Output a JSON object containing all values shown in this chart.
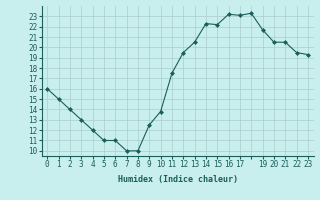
{
  "x": [
    0,
    1,
    2,
    3,
    4,
    5,
    6,
    7,
    8,
    9,
    10,
    11,
    12,
    13,
    14,
    15,
    16,
    17,
    18,
    19,
    20,
    21,
    22,
    23
  ],
  "y": [
    16,
    15,
    14,
    13,
    12,
    11,
    11,
    10,
    10,
    12.5,
    13.8,
    17.5,
    19.5,
    20.5,
    22.3,
    22.2,
    23.2,
    23.1,
    23.3,
    21.7,
    20.5,
    20.5,
    19.5,
    19.3
  ],
  "line_color": "#1a5f5a",
  "marker": "D",
  "marker_size": 2,
  "bg_color": "#c8eeee",
  "grid_color": "#aacccc",
  "xlabel": "Humidex (Indice chaleur)",
  "xlabel_fontsize": 6,
  "tick_fontsize": 5.5,
  "ylim": [
    9.5,
    24
  ],
  "xlim": [
    -0.5,
    23.5
  ],
  "yticks": [
    10,
    11,
    12,
    13,
    14,
    15,
    16,
    17,
    18,
    19,
    20,
    21,
    22,
    23
  ],
  "xticks": [
    0,
    1,
    2,
    3,
    4,
    5,
    6,
    7,
    8,
    9,
    10,
    11,
    12,
    13,
    14,
    15,
    16,
    17,
    18,
    19,
    20,
    21,
    22,
    23
  ],
  "xtick_labels": [
    "0",
    "1",
    "2",
    "3",
    "4",
    "5",
    "6",
    "7",
    "8",
    "9",
    "10",
    "11",
    "12",
    "13",
    "14",
    "15",
    "16",
    "17",
    "",
    "19",
    "20",
    "21",
    "22",
    "23"
  ]
}
